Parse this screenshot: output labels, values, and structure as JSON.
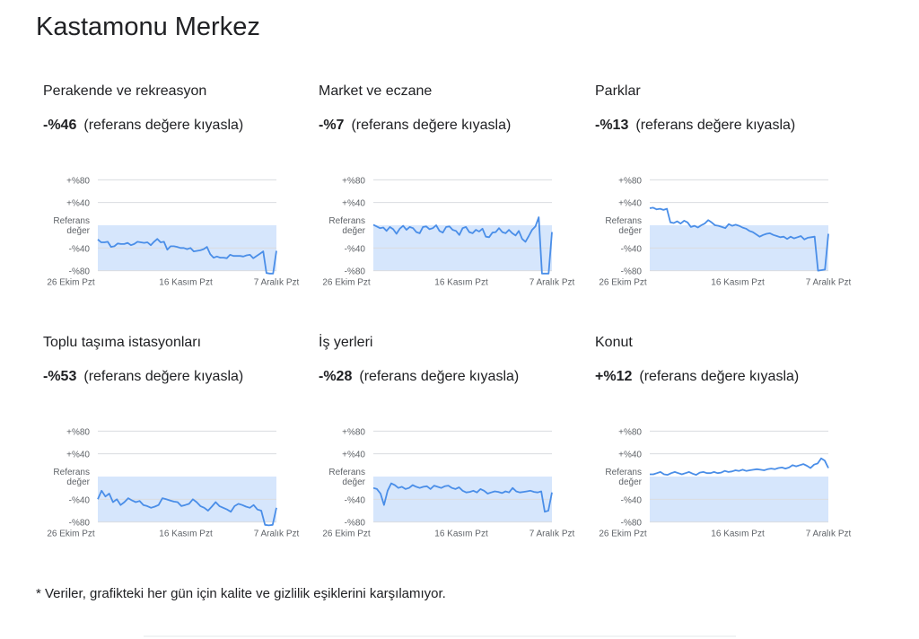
{
  "page": {
    "title": "Kastamonu Merkez"
  },
  "common": {
    "suffix": "(referans değere kıyasla)",
    "ticks": [
      "+%80",
      "+%40",
      "Referans",
      "değer",
      "-%40",
      "-%80"
    ],
    "xticks": [
      "26 Ekim Pzt",
      "16 Kasım Pzt",
      "7 Aralık Pzt"
    ],
    "line_color": "#4a8ee8",
    "fill_color": "#d6e6fc"
  },
  "footnote": "*  Veriler, grafikteki her gün için kalite ve gizlilik eşiklerini karşılamıyor.",
  "chart_data": [
    {
      "type": "line",
      "title": "Perakende ve rekreasyon",
      "value": "-%46",
      "ylim": [
        -80,
        80
      ],
      "values": [
        -25,
        -30,
        -30,
        -29,
        -38,
        -37,
        -32,
        -33,
        -33,
        -31,
        -35,
        -33,
        -29,
        -30,
        -31,
        -30,
        -35,
        -29,
        -24,
        -30,
        -29,
        -43,
        -37,
        -37,
        -38,
        -40,
        -40,
        -42,
        -40,
        -46,
        -45,
        -44,
        -42,
        -38,
        -51,
        -57,
        -55,
        -57,
        -57,
        -58,
        -52,
        -54,
        -54,
        -54,
        -55,
        -53,
        -52,
        -58,
        -54,
        -50,
        -46,
        -84,
        -85,
        -85,
        -45
      ]
    },
    {
      "type": "line",
      "title": "Market ve eczane",
      "value": "-%7",
      "ylim": [
        -80,
        80
      ],
      "values": [
        1,
        -2,
        -5,
        -4,
        -10,
        -3,
        -7,
        -15,
        -6,
        -1,
        -8,
        -3,
        -5,
        -12,
        -14,
        -3,
        -2,
        -7,
        -5,
        0,
        -10,
        -13,
        -3,
        -2,
        -8,
        -10,
        -17,
        -5,
        -3,
        -12,
        -14,
        -8,
        -11,
        -6,
        -20,
        -21,
        -13,
        -12,
        -5,
        -12,
        -14,
        -8,
        -14,
        -18,
        -10,
        -24,
        -29,
        -19,
        -8,
        -2,
        14,
        -85,
        -85,
        -85,
        -12
      ]
    },
    {
      "type": "line",
      "title": "Parklar",
      "value": "-%13",
      "ylim": [
        -80,
        80
      ],
      "values": [
        30,
        31,
        28,
        29,
        27,
        29,
        5,
        4,
        7,
        3,
        8,
        5,
        -3,
        -1,
        -4,
        0,
        3,
        9,
        5,
        0,
        -1,
        -3,
        -5,
        2,
        -1,
        1,
        -1,
        -4,
        -6,
        -10,
        -12,
        -16,
        -20,
        -17,
        -15,
        -14,
        -17,
        -19,
        -21,
        -20,
        -24,
        -20,
        -23,
        -21,
        -19,
        -25,
        -22,
        -21,
        -20,
        -80,
        -79,
        -78,
        -15
      ]
    },
    {
      "type": "line",
      "title": "Toplu taşıma istasyonları",
      "value": "-%53",
      "ylim": [
        -80,
        80
      ],
      "values": [
        -40,
        -25,
        -35,
        -30,
        -45,
        -40,
        -50,
        -45,
        -38,
        -42,
        -45,
        -43,
        -50,
        -52,
        -55,
        -53,
        -50,
        -38,
        -40,
        -42,
        -44,
        -45,
        -52,
        -50,
        -48,
        -40,
        -45,
        -52,
        -55,
        -60,
        -53,
        -45,
        -52,
        -55,
        -58,
        -62,
        -52,
        -48,
        -50,
        -53,
        -55,
        -50,
        -58,
        -60,
        -85,
        -86,
        -85,
        -55
      ]
    },
    {
      "type": "line",
      "title": "İş yerleri",
      "value": "-%28",
      "ylim": [
        -80,
        80
      ],
      "values": [
        -20,
        -22,
        -30,
        -50,
        -25,
        -12,
        -15,
        -20,
        -18,
        -22,
        -20,
        -15,
        -18,
        -20,
        -18,
        -17,
        -22,
        -16,
        -18,
        -20,
        -17,
        -16,
        -20,
        -22,
        -19,
        -25,
        -28,
        -27,
        -25,
        -28,
        -22,
        -25,
        -30,
        -28,
        -26,
        -27,
        -29,
        -26,
        -28,
        -20,
        -26,
        -28,
        -27,
        -26,
        -25,
        -27,
        -28,
        -26,
        -62,
        -60,
        -28
      ]
    },
    {
      "type": "line",
      "title": "Konut",
      "value": "+%12",
      "ylim": [
        -80,
        80
      ],
      "values": [
        4,
        4,
        6,
        8,
        4,
        3,
        6,
        8,
        6,
        4,
        6,
        8,
        5,
        3,
        7,
        8,
        6,
        6,
        8,
        6,
        7,
        10,
        8,
        9,
        11,
        10,
        12,
        10,
        11,
        12,
        13,
        12,
        11,
        13,
        14,
        13,
        15,
        16,
        14,
        16,
        20,
        18,
        20,
        22,
        19,
        15,
        21,
        23,
        32,
        28,
        15
      ]
    }
  ]
}
